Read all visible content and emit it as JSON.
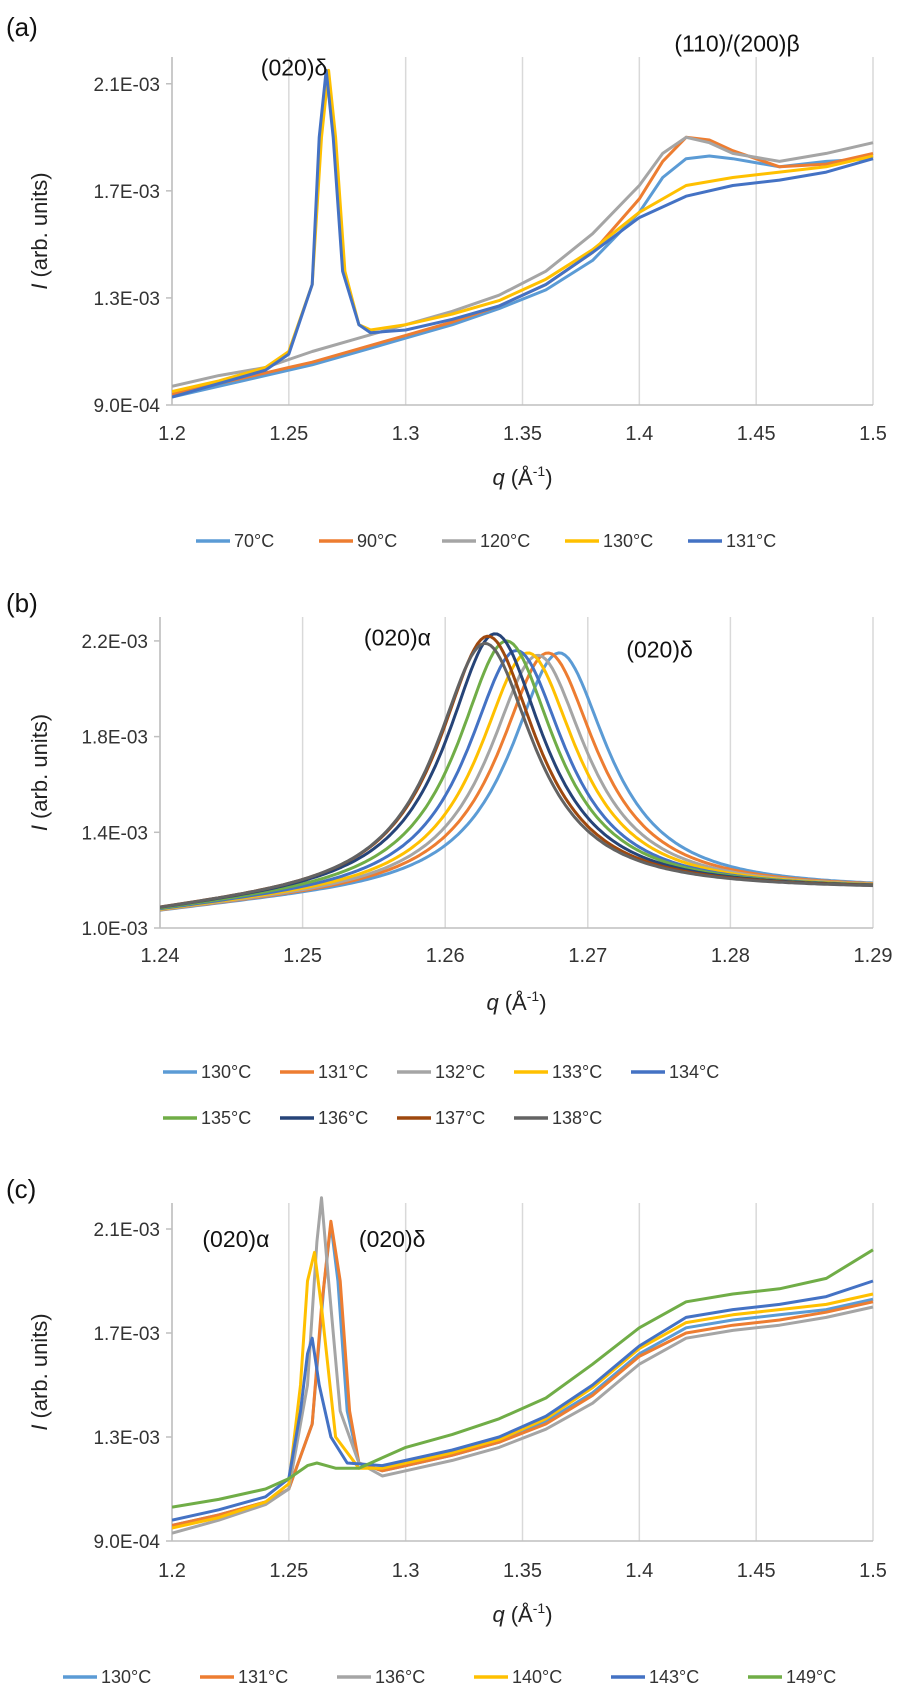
{
  "chart_data": [
    {
      "panel_label": "(a)",
      "type": "line",
      "xlabel_var": "q",
      "xlabel_unit": "(Å",
      "xlabel_sup": "-1",
      "xlabel_close": ")",
      "ylabel_var": "I",
      "ylabel_unit": "(arb. units)",
      "xlim": [
        1.2,
        1.5
      ],
      "ylim": [
        0.0009,
        0.0022
      ],
      "xticks": [
        1.2,
        1.25,
        1.3,
        1.35,
        1.4,
        1.45,
        1.5
      ],
      "xtick_labels": [
        "1.2",
        "1.25",
        "1.3",
        "1.35",
        "1.4",
        "1.45",
        "1.5"
      ],
      "yticks": [
        0.0009,
        0.0013,
        0.0017,
        0.0021
      ],
      "ytick_labels": [
        "9.0E-04",
        "1.3E-03",
        "1.7E-03",
        "2.1E-03"
      ],
      "grid": "vertical",
      "legend_position": "bottom",
      "annotations": [
        {
          "text": "(020)δ",
          "x": 1.238,
          "y": 0.00213
        },
        {
          "text": "(110)/(200)β",
          "x": 1.415,
          "y": 0.00222
        }
      ],
      "series": [
        {
          "name": "70°C",
          "color": "#5B9BD5",
          "x": [
            1.2,
            1.22,
            1.24,
            1.25,
            1.26,
            1.28,
            1.3,
            1.32,
            1.34,
            1.36,
            1.38,
            1.4,
            1.41,
            1.42,
            1.43,
            1.44,
            1.46,
            1.48,
            1.5
          ],
          "y": [
            0.00093,
            0.00097,
            0.00101,
            0.00103,
            0.00105,
            0.0011,
            0.00115,
            0.0012,
            0.00126,
            0.00133,
            0.00144,
            0.00162,
            0.00175,
            0.00182,
            0.00183,
            0.00182,
            0.00179,
            0.00181,
            0.00182
          ]
        },
        {
          "name": "90°C",
          "color": "#ED7D31",
          "x": [
            1.2,
            1.22,
            1.24,
            1.25,
            1.26,
            1.28,
            1.3,
            1.32,
            1.34,
            1.36,
            1.38,
            1.4,
            1.41,
            1.42,
            1.43,
            1.44,
            1.46,
            1.48,
            1.5
          ],
          "y": [
            0.00094,
            0.00098,
            0.00102,
            0.00104,
            0.00106,
            0.00111,
            0.00116,
            0.00121,
            0.00127,
            0.00135,
            0.00147,
            0.00167,
            0.00181,
            0.0019,
            0.00189,
            0.00185,
            0.00179,
            0.0018,
            0.00184
          ]
        },
        {
          "name": "120°C",
          "color": "#A5A5A5",
          "x": [
            1.2,
            1.22,
            1.24,
            1.26,
            1.28,
            1.3,
            1.32,
            1.34,
            1.36,
            1.38,
            1.4,
            1.41,
            1.42,
            1.43,
            1.44,
            1.46,
            1.48,
            1.5
          ],
          "y": [
            0.00097,
            0.00101,
            0.00104,
            0.0011,
            0.00115,
            0.0012,
            0.00125,
            0.00131,
            0.0014,
            0.00154,
            0.00172,
            0.00184,
            0.0019,
            0.00188,
            0.00184,
            0.00181,
            0.00184,
            0.00188
          ]
        },
        {
          "name": "130°C",
          "color": "#FFC000",
          "x": [
            1.2,
            1.22,
            1.24,
            1.25,
            1.26,
            1.264,
            1.267,
            1.27,
            1.274,
            1.28,
            1.285,
            1.3,
            1.32,
            1.34,
            1.36,
            1.38,
            1.4,
            1.42,
            1.44,
            1.46,
            1.48,
            1.5
          ],
          "y": [
            0.00095,
            0.00099,
            0.00104,
            0.0011,
            0.00135,
            0.0019,
            0.00215,
            0.0019,
            0.0014,
            0.0012,
            0.00118,
            0.0012,
            0.00124,
            0.00129,
            0.00137,
            0.00148,
            0.00162,
            0.00172,
            0.00175,
            0.00177,
            0.00179,
            0.00183
          ]
        },
        {
          "name": "131°C",
          "color": "#4472C4",
          "x": [
            1.2,
            1.22,
            1.24,
            1.25,
            1.26,
            1.263,
            1.266,
            1.269,
            1.273,
            1.28,
            1.285,
            1.3,
            1.32,
            1.34,
            1.36,
            1.38,
            1.4,
            1.42,
            1.44,
            1.46,
            1.48,
            1.5
          ],
          "y": [
            0.00093,
            0.00098,
            0.00103,
            0.00109,
            0.00135,
            0.0019,
            0.00215,
            0.0019,
            0.0014,
            0.0012,
            0.00117,
            0.00118,
            0.00122,
            0.00127,
            0.00135,
            0.00147,
            0.0016,
            0.00168,
            0.00172,
            0.00174,
            0.00177,
            0.00182
          ]
        }
      ]
    },
    {
      "panel_label": "(b)",
      "type": "line",
      "xlabel_var": "q",
      "xlabel_unit": "(Å",
      "xlabel_sup": "-1",
      "xlabel_close": ")",
      "ylabel_var": "I",
      "ylabel_unit": "(arb. units)",
      "xlim": [
        1.24,
        1.29
      ],
      "ylim": [
        0.001,
        0.0023
      ],
      "xticks": [
        1.24,
        1.25,
        1.26,
        1.27,
        1.28,
        1.29
      ],
      "xtick_labels": [
        "1.24",
        "1.25",
        "1.26",
        "1.27",
        "1.28",
        "1.29"
      ],
      "yticks": [
        0.001,
        0.0014,
        0.0018,
        0.0022
      ],
      "ytick_labels": [
        "1.0E-03",
        "1.4E-03",
        "1.8E-03",
        "2.2E-03"
      ],
      "grid": "vertical",
      "legend_position": "bottom",
      "annotations": [
        {
          "text": "(020)α",
          "x": 1.2543,
          "y": 0.00218
        },
        {
          "text": "(020)δ",
          "x": 1.2727,
          "y": 0.00213
        }
      ],
      "series": [
        {
          "name": "130°C",
          "color": "#5B9BD5",
          "peak_q": 1.268,
          "peak_I": 0.00215
        },
        {
          "name": "131°C",
          "color": "#ED7D31",
          "peak_q": 1.2672,
          "peak_I": 0.00215
        },
        {
          "name": "132°C",
          "color": "#A5A5A5",
          "peak_q": 1.2665,
          "peak_I": 0.00214
        },
        {
          "name": "133°C",
          "color": "#FFC000",
          "peak_q": 1.2658,
          "peak_I": 0.00215
        },
        {
          "name": "134°C",
          "color": "#4472C4",
          "peak_q": 1.265,
          "peak_I": 0.00216
        },
        {
          "name": "135°C",
          "color": "#70AD47",
          "peak_q": 1.2643,
          "peak_I": 0.0022
        },
        {
          "name": "136°C",
          "color": "#264478",
          "peak_q": 1.2635,
          "peak_I": 0.00223
        },
        {
          "name": "137°C",
          "color": "#9E480E",
          "peak_q": 1.263,
          "peak_I": 0.00222
        },
        {
          "name": "138°C",
          "color": "#636363",
          "peak_q": 1.2628,
          "peak_I": 0.00219
        }
      ]
    },
    {
      "panel_label": "(c)",
      "type": "line",
      "xlabel_var": "q",
      "xlabel_unit": "(Å",
      "xlabel_sup": "-1",
      "xlabel_close": ")",
      "ylabel_var": "I",
      "ylabel_unit": "(arb. units)",
      "xlim": [
        1.2,
        1.5
      ],
      "ylim": [
        0.0009,
        0.0022
      ],
      "xticks": [
        1.2,
        1.25,
        1.3,
        1.35,
        1.4,
        1.45,
        1.5
      ],
      "xtick_labels": [
        "1.2",
        "1.25",
        "1.3",
        "1.35",
        "1.4",
        "1.45",
        "1.5"
      ],
      "yticks": [
        0.0009,
        0.0013,
        0.0017,
        0.0021
      ],
      "ytick_labels": [
        "9.0E-04",
        "1.3E-03",
        "1.7E-03",
        "2.1E-03"
      ],
      "grid": "vertical",
      "legend_position": "bottom",
      "annotations": [
        {
          "text": "(020)α",
          "x": 1.213,
          "y": 0.00203
        },
        {
          "text": "(020)δ",
          "x": 1.28,
          "y": 0.00203
        }
      ],
      "series": [
        {
          "name": "130°C",
          "color": "#5B9BD5",
          "x": [
            1.2,
            1.22,
            1.24,
            1.25,
            1.26,
            1.265,
            1.268,
            1.271,
            1.275,
            1.28,
            1.29,
            1.3,
            1.32,
            1.34,
            1.36,
            1.38,
            1.4,
            1.42,
            1.44,
            1.46,
            1.48,
            1.5
          ],
          "y": [
            0.00096,
            0.001,
            0.00105,
            0.0011,
            0.00135,
            0.00188,
            0.00212,
            0.0019,
            0.0014,
            0.0012,
            0.00117,
            0.00119,
            0.00123,
            0.00128,
            0.00136,
            0.00147,
            0.00162,
            0.00172,
            0.00175,
            0.00177,
            0.00179,
            0.00183
          ]
        },
        {
          "name": "131°C",
          "color": "#ED7D31",
          "x": [
            1.2,
            1.22,
            1.24,
            1.25,
            1.26,
            1.264,
            1.268,
            1.272,
            1.276,
            1.28,
            1.29,
            1.3,
            1.32,
            1.34,
            1.36,
            1.38,
            1.4,
            1.42,
            1.44,
            1.46,
            1.48,
            1.5
          ],
          "y": [
            0.00096,
            0.001,
            0.00105,
            0.0011,
            0.00135,
            0.0018,
            0.00213,
            0.0019,
            0.0014,
            0.0012,
            0.00117,
            0.00119,
            0.00123,
            0.00128,
            0.00135,
            0.00146,
            0.00161,
            0.0017,
            0.00173,
            0.00175,
            0.00178,
            0.00182
          ]
        },
        {
          "name": "136°C",
          "color": "#A5A5A5",
          "x": [
            1.2,
            1.22,
            1.24,
            1.25,
            1.258,
            1.262,
            1.264,
            1.267,
            1.272,
            1.28,
            1.29,
            1.3,
            1.32,
            1.34,
            1.36,
            1.38,
            1.4,
            1.42,
            1.44,
            1.46,
            1.48,
            1.5
          ],
          "y": [
            0.00093,
            0.00098,
            0.00104,
            0.0011,
            0.0015,
            0.00205,
            0.00222,
            0.0019,
            0.0014,
            0.0012,
            0.00115,
            0.00117,
            0.00121,
            0.00126,
            0.00133,
            0.00143,
            0.00158,
            0.00168,
            0.00171,
            0.00173,
            0.00176,
            0.0018
          ]
        },
        {
          "name": "140°C",
          "color": "#FFC000",
          "x": [
            1.2,
            1.22,
            1.24,
            1.25,
            1.255,
            1.258,
            1.261,
            1.264,
            1.27,
            1.28,
            1.29,
            1.3,
            1.32,
            1.34,
            1.36,
            1.38,
            1.4,
            1.42,
            1.44,
            1.46,
            1.48,
            1.5
          ],
          "y": [
            0.00095,
            0.00099,
            0.00105,
            0.00112,
            0.0015,
            0.0019,
            0.00201,
            0.0018,
            0.0013,
            0.00118,
            0.00118,
            0.0012,
            0.00124,
            0.00129,
            0.00137,
            0.00149,
            0.00164,
            0.00174,
            0.00177,
            0.00179,
            0.00181,
            0.00185
          ]
        },
        {
          "name": "143°C",
          "color": "#4472C4",
          "x": [
            1.2,
            1.22,
            1.24,
            1.25,
            1.255,
            1.258,
            1.26,
            1.263,
            1.268,
            1.275,
            1.29,
            1.3,
            1.32,
            1.34,
            1.36,
            1.38,
            1.4,
            1.42,
            1.44,
            1.46,
            1.48,
            1.5
          ],
          "y": [
            0.00098,
            0.00102,
            0.00107,
            0.00114,
            0.0014,
            0.00162,
            0.00168,
            0.0015,
            0.0013,
            0.0012,
            0.00119,
            0.00121,
            0.00125,
            0.0013,
            0.00138,
            0.0015,
            0.00165,
            0.00176,
            0.00179,
            0.00181,
            0.00184,
            0.0019
          ]
        },
        {
          "name": "149°C",
          "color": "#70AD47",
          "x": [
            1.2,
            1.22,
            1.24,
            1.25,
            1.258,
            1.262,
            1.266,
            1.27,
            1.28,
            1.29,
            1.3,
            1.32,
            1.34,
            1.36,
            1.38,
            1.4,
            1.42,
            1.44,
            1.46,
            1.48,
            1.5
          ],
          "y": [
            0.00103,
            0.00106,
            0.0011,
            0.00114,
            0.00119,
            0.0012,
            0.00119,
            0.00118,
            0.00118,
            0.00122,
            0.00126,
            0.00131,
            0.00137,
            0.00145,
            0.00158,
            0.00172,
            0.00182,
            0.00185,
            0.00187,
            0.00191,
            0.00202
          ]
        }
      ]
    }
  ]
}
